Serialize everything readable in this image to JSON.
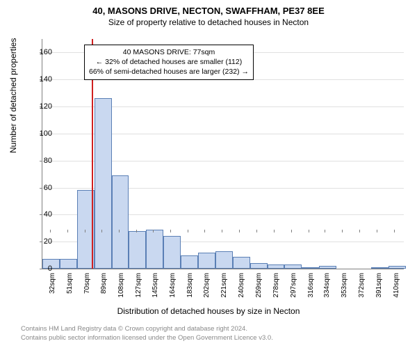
{
  "title": "40, MASONS DRIVE, NECTON, SWAFFHAM, PE37 8EE",
  "subtitle": "Size of property relative to detached houses in Necton",
  "ylabel": "Number of detached properties",
  "xlabel": "Distribution of detached houses by size in Necton",
  "annotation": {
    "line1": "40 MASONS DRIVE: 77sqm",
    "line2": "← 32% of detached houses are smaller (112)",
    "line3": "66% of semi-detached houses are larger (232) →"
  },
  "footer": {
    "line1": "Contains HM Land Registry data © Crown copyright and database right 2024.",
    "line2": "Contains public sector information licensed under the Open Government Licence v3.0."
  },
  "chart": {
    "type": "histogram",
    "ylim": [
      0,
      170
    ],
    "yticks": [
      0,
      20,
      40,
      60,
      80,
      100,
      120,
      140,
      160
    ],
    "xticks": [
      32,
      51,
      70,
      89,
      108,
      127,
      145,
      164,
      183,
      202,
      221,
      240,
      259,
      278,
      297,
      316,
      334,
      353,
      372,
      391,
      410
    ],
    "xtick_suffix": "sqm",
    "xstart": 23,
    "xend": 420,
    "bin_width": 19,
    "marker_x": 77,
    "values": [
      7,
      7,
      58,
      126,
      69,
      28,
      29,
      24,
      10,
      12,
      13,
      9,
      4,
      3,
      3,
      1,
      2,
      0,
      0,
      1,
      2
    ],
    "bar_fill": "#c9d8f0",
    "bar_stroke": "#5a7fb5",
    "marker_color": "#d02020",
    "background_color": "#ffffff",
    "grid_color": "#e0e0e0",
    "title_fontsize": 13,
    "subtitle_fontsize": 12,
    "label_fontsize": 12,
    "tick_fontsize": 11
  }
}
